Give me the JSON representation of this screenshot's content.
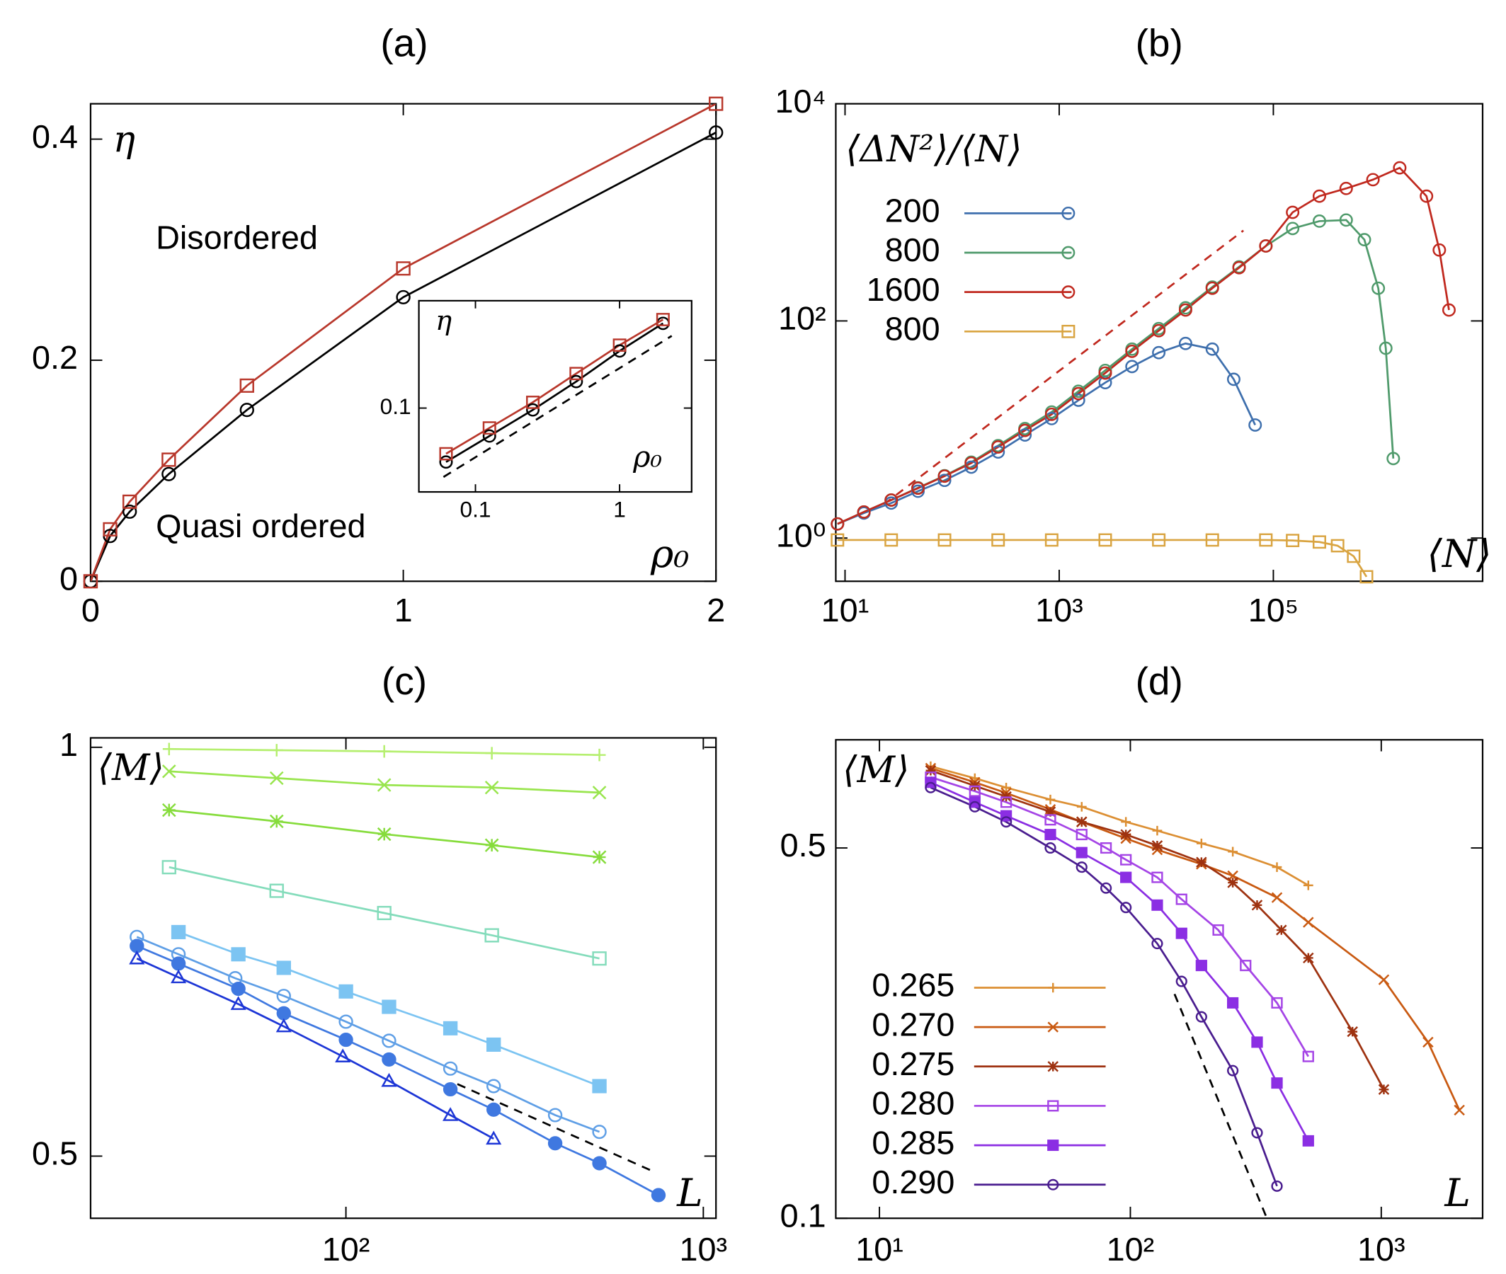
{
  "chart_data": [
    {
      "type": "line",
      "title": "(a)",
      "xlim": [
        0,
        2
      ],
      "ylim": [
        0,
        0.432
      ],
      "xticks": [
        0,
        1,
        2
      ],
      "yticks": [
        0,
        0.2,
        0.4
      ],
      "xlabel": "ρ₀",
      "ylabel": "η",
      "annotations": [
        "Disordered",
        "Quasi ordered"
      ],
      "series": [
        {
          "color": "#000000",
          "marker": "circle",
          "x": [
            0,
            0.0625,
            0.125,
            0.25,
            0.5,
            1,
            2
          ],
          "values": [
            0,
            0.041,
            0.063,
            0.097,
            0.155,
            0.257,
            0.406
          ]
        },
        {
          "color": "#b8372b",
          "marker": "square",
          "x": [
            0,
            0.0625,
            0.125,
            0.25,
            0.5,
            1,
            2
          ],
          "values": [
            0,
            0.047,
            0.072,
            0.11,
            0.177,
            0.283,
            0.432
          ]
        }
      ],
      "inset": {
        "xlog": true,
        "ylog": true,
        "xlim": [
          0.0405,
          3.16
        ],
        "ylim": [
          0.025,
          0.59
        ],
        "xticks": [
          0.1,
          1
        ],
        "yticks": [
          0.1
        ],
        "xlabel": "ρ₀",
        "ylabel": "η",
        "reference_lines": [
          {
            "color": "#000000",
            "style": "dashed",
            "x": [
              0.06,
              2.3
            ],
            "values": [
              0.032,
              0.33
            ]
          }
        ]
      }
    },
    {
      "type": "line",
      "title": "(b)",
      "xlog": true,
      "ylog": true,
      "xlim": [
        8.2,
        9000000
      ],
      "ylim": [
        0.4,
        10000
      ],
      "xticks": [
        {
          "value": 10,
          "label": "10¹"
        },
        {
          "value": 1000,
          "label": "10³"
        },
        {
          "value": 100000,
          "label": "10⁵"
        }
      ],
      "yticks": [
        {
          "value": 1,
          "label": "10⁰"
        },
        {
          "value": 100,
          "label": "10²"
        },
        {
          "value": 10000,
          "label": "10⁴"
        }
      ],
      "xlabel": "⟨N⟩",
      "ylabel": "⟨ΔN²⟩/⟨N⟩",
      "series": [
        {
          "name": "200",
          "color": "#3e6fad",
          "marker": "circle",
          "x": [
            8.5,
            15,
            27,
            48,
            85,
            151,
            269,
            479,
            851,
            1514,
            2692,
            4786,
            8511,
            15136,
            26915,
            42658,
            67608
          ],
          "values": [
            1.35,
            1.7,
            2.1,
            2.7,
            3.4,
            4.5,
            6.2,
            8.9,
            12.6,
            18.6,
            27,
            38,
            51,
            62,
            55,
            29,
            11
          ]
        },
        {
          "name": "800",
          "color": "#4f9a6b",
          "marker": "circle",
          "x": [
            8.5,
            15,
            27,
            48,
            85,
            151,
            269,
            479,
            851,
            1514,
            2692,
            4786,
            8511,
            15136,
            26915,
            47863,
            85114,
            151356,
            269153,
            478630,
            707946,
            954993,
            1122018,
            1318257
          ],
          "values": [
            1.35,
            1.74,
            2.24,
            2.9,
            3.75,
            5.0,
            7.1,
            10.2,
            14.5,
            22.5,
            35,
            55,
            85,
            132,
            205,
            315,
            490,
            710,
            830,
            850,
            560,
            200,
            56,
            5.4
          ]
        },
        {
          "name": "1600",
          "color": "#c0281e",
          "marker": "circle",
          "x": [
            8.5,
            15,
            27,
            48,
            85,
            151,
            269,
            479,
            851,
            1514,
            2692,
            4786,
            8511,
            15136,
            26915,
            47863,
            85114,
            151356,
            269153,
            478630,
            851138,
            1513561,
            2691535,
            3548134,
            4365158
          ],
          "values": [
            1.35,
            1.74,
            2.24,
            2.88,
            3.72,
            4.9,
            6.9,
            9.8,
            13.8,
            21.4,
            33.1,
            52.5,
            81.3,
            126,
            200,
            309,
            490,
            1000,
            1410,
            1660,
            2000,
            2570,
            1410,
            450,
            126
          ]
        },
        {
          "name": "800",
          "color": "#d9a441",
          "marker": "square",
          "x": [
            8.5,
            27,
            85,
            269,
            851,
            2692,
            8511,
            26915,
            85114,
            151356,
            269153,
            398107,
            562341,
            741310
          ],
          "values": [
            0.96,
            0.96,
            0.96,
            0.96,
            0.96,
            0.96,
            0.96,
            0.96,
            0.96,
            0.95,
            0.92,
            0.85,
            0.68,
            0.44
          ]
        }
      ],
      "reference_lines": [
        {
          "color": "#c0281e",
          "style": "dashed",
          "x": [
            23,
            52500
          ],
          "values": [
            2.04,
            680
          ]
        }
      ]
    },
    {
      "type": "line",
      "title": "(c)",
      "xlog": true,
      "ylog": true,
      "xlim": [
        19.3,
        1085
      ],
      "ylim": [
        0.45,
        1.016
      ],
      "xticks": [
        {
          "value": 100,
          "label": "10²"
        },
        {
          "value": 1000,
          "label": "10³"
        }
      ],
      "yticks": [
        0.5,
        1
      ],
      "xlabel": "L",
      "ylabel": "⟨M⟩",
      "series": [
        {
          "color": "#b5ef6f",
          "marker": "plus",
          "x": [
            32,
            64,
            128,
            256,
            512
          ],
          "values": [
            0.997,
            0.995,
            0.993,
            0.99,
            0.987
          ]
        },
        {
          "color": "#99e54e",
          "marker": "cross",
          "x": [
            32,
            64,
            128,
            256,
            512
          ],
          "values": [
            0.96,
            0.949,
            0.938,
            0.934,
            0.926
          ]
        },
        {
          "color": "#86dc3c",
          "marker": "star",
          "x": [
            32,
            64,
            128,
            256,
            512
          ],
          "values": [
            0.899,
            0.882,
            0.863,
            0.847,
            0.83
          ]
        },
        {
          "color": "#84dcbb",
          "marker": "square",
          "x": [
            32,
            64,
            128,
            256,
            512
          ],
          "values": [
            0.816,
            0.784,
            0.755,
            0.727,
            0.699
          ]
        },
        {
          "color": "#7cc4f2",
          "marker": "square-filled",
          "x": [
            34,
            50,
            67,
            100,
            132,
            196,
            259,
            512
          ],
          "values": [
            0.731,
            0.704,
            0.688,
            0.661,
            0.644,
            0.621,
            0.604,
            0.563
          ]
        },
        {
          "color": "#5f9fe6",
          "marker": "circle",
          "x": [
            26,
            34,
            49,
            67,
            100,
            132,
            196,
            259,
            385,
            512
          ],
          "values": [
            0.725,
            0.704,
            0.676,
            0.656,
            0.628,
            0.608,
            0.58,
            0.563,
            0.536,
            0.521
          ]
        },
        {
          "color": "#3f78e0",
          "marker": "circle-filled",
          "x": [
            26,
            34,
            50,
            67,
            100,
            132,
            196,
            259,
            385,
            512,
            749
          ],
          "values": [
            0.714,
            0.693,
            0.664,
            0.637,
            0.609,
            0.589,
            0.56,
            0.541,
            0.511,
            0.494,
            0.468
          ]
        },
        {
          "color": "#1d36d6",
          "marker": "triangle",
          "x": [
            26,
            34,
            50,
            67,
            98,
            132,
            196,
            259
          ],
          "values": [
            0.699,
            0.677,
            0.647,
            0.623,
            0.592,
            0.568,
            0.536,
            0.515
          ]
        }
      ],
      "reference_lines": [
        {
          "color": "#000000",
          "style": "dashed",
          "x": [
            205,
            714
          ],
          "values": [
            0.565,
            0.488
          ]
        }
      ]
    },
    {
      "type": "line",
      "title": "(d)",
      "xlog": true,
      "ylog": true,
      "xlim": [
        6.7,
        2535
      ],
      "ylim": [
        0.1,
        0.8
      ],
      "xticks": [
        {
          "value": 10,
          "label": "10¹"
        },
        {
          "value": 100,
          "label": "10²"
        },
        {
          "value": 1000,
          "label": "10³"
        }
      ],
      "yticks": [
        0.1,
        0.5
      ],
      "xlabel": "L",
      "ylabel": "⟨M⟩",
      "series": [
        {
          "name": "0.265",
          "color": "#dc8f33",
          "marker": "plus",
          "x": [
            16,
            24,
            32,
            48,
            64,
            96,
            128,
            192,
            256,
            384,
            512
          ],
          "values": [
            0.713,
            0.677,
            0.65,
            0.617,
            0.598,
            0.56,
            0.539,
            0.51,
            0.492,
            0.46,
            0.425
          ]
        },
        {
          "name": "0.270",
          "color": "#c95a12",
          "marker": "cross",
          "x": [
            16,
            24,
            32,
            48,
            64,
            96,
            128,
            192,
            256,
            384,
            512,
            1024,
            1536,
            2048
          ],
          "values": [
            0.707,
            0.665,
            0.635,
            0.591,
            0.56,
            0.521,
            0.496,
            0.466,
            0.443,
            0.403,
            0.362,
            0.282,
            0.215,
            0.16
          ]
        },
        {
          "name": "0.275",
          "color": "#9e3210",
          "marker": "star",
          "x": [
            16,
            24,
            32,
            48,
            64,
            96,
            128,
            192,
            256,
            320,
            400,
            512,
            768,
            1024
          ],
          "values": [
            0.7,
            0.655,
            0.625,
            0.585,
            0.56,
            0.53,
            0.505,
            0.47,
            0.43,
            0.39,
            0.35,
            0.31,
            0.225,
            0.175
          ]
        },
        {
          "name": "0.280",
          "color": "#a545e6",
          "marker": "square",
          "x": [
            16,
            24,
            32,
            48,
            64,
            80,
            96,
            128,
            160,
            224,
            288,
            384,
            512
          ],
          "values": [
            0.68,
            0.64,
            0.61,
            0.565,
            0.53,
            0.5,
            0.475,
            0.44,
            0.4,
            0.35,
            0.3,
            0.255,
            0.202
          ]
        },
        {
          "name": "0.285",
          "color": "#8b2ee3",
          "marker": "square-filled",
          "x": [
            16,
            24,
            32,
            48,
            64,
            96,
            128,
            160,
            192,
            256,
            320,
            384,
            512
          ],
          "values": [
            0.665,
            0.61,
            0.575,
            0.53,
            0.49,
            0.44,
            0.39,
            0.345,
            0.3,
            0.255,
            0.215,
            0.18,
            0.14
          ]
        },
        {
          "name": "0.290",
          "color": "#4a1d8f",
          "marker": "circle",
          "x": [
            16,
            24,
            32,
            48,
            64,
            80,
            96,
            128,
            160,
            192,
            256,
            320,
            384
          ],
          "values": [
            0.65,
            0.598,
            0.56,
            0.5,
            0.46,
            0.42,
            0.386,
            0.33,
            0.28,
            0.24,
            0.19,
            0.145,
            0.115
          ]
        }
      ],
      "reference_lines": [
        {
          "color": "#000000",
          "style": "dashed",
          "x": [
            150,
            350
          ],
          "values": [
            0.265,
            0.1
          ]
        }
      ]
    }
  ]
}
